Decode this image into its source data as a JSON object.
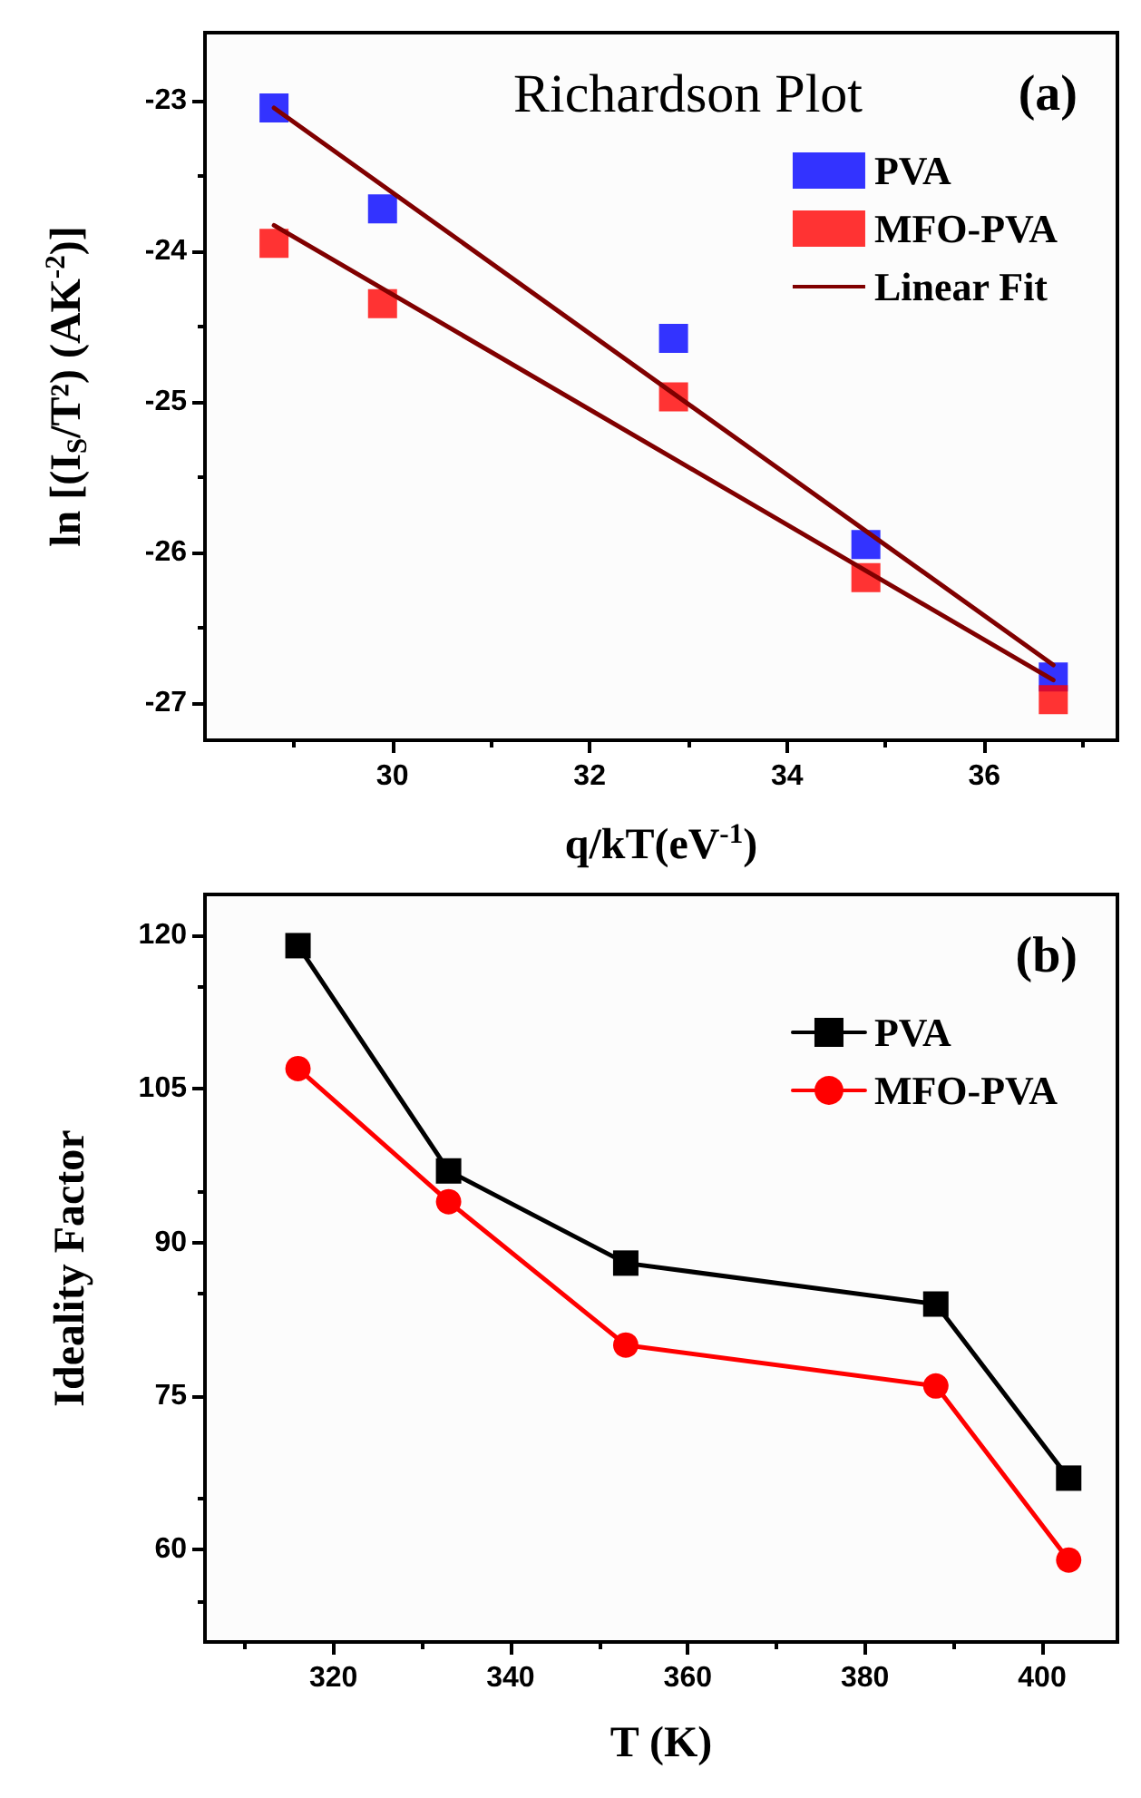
{
  "chart_data": [
    {
      "type": "scatter",
      "title": "Richardson Plot",
      "xlabel": "q/kT(eV$^{-1}$)",
      "ylabel": "ln [(I$_{S}$/T²) (AK$^{-2}$)]",
      "annotations": [
        "(a)"
      ],
      "xlim": [
        28.1,
        37.35
      ],
      "xticks": [
        30,
        32,
        34,
        36
      ],
      "ylim": [
        -27.25,
        -22.55
      ],
      "yticks": [
        -27,
        -26,
        -25,
        -24,
        -23
      ],
      "grid": false,
      "legend": "top right",
      "marker": "square",
      "series": [
        {
          "name": "PVA",
          "color": "#0000ff",
          "x": [
            28.8,
            29.9,
            32.85,
            34.8,
            36.7
          ],
          "values": [
            -23.05,
            -23.72,
            -24.58,
            -25.95,
            -26.83
          ]
        },
        {
          "name": "MFO-PVA",
          "color": "#ff0000",
          "x": [
            28.8,
            29.9,
            32.85,
            34.8,
            36.7
          ],
          "values": [
            -23.95,
            -24.35,
            -24.97,
            -26.17,
            -26.98
          ]
        },
        {
          "name": "Linear Fit",
          "type": "line",
          "marker": "none",
          "color": "#800000",
          "x": [
            28.8,
            36.7
          ],
          "values": [
            -23.05,
            -26.75
          ]
        },
        {
          "type": "line",
          "marker": "none",
          "color": "#800000",
          "x": [
            28.8,
            36.7
          ],
          "values": [
            -23.83,
            -26.85
          ]
        }
      ]
    },
    {
      "type": "line",
      "xlabel": "T (K)",
      "ylabel": "Ideality Factor",
      "annotations": [
        "(b)"
      ],
      "xlim": [
        305.5,
        408.5
      ],
      "xticks": [
        320,
        340,
        360,
        380,
        400
      ],
      "ylim": [
        51,
        124
      ],
      "yticks": [
        60,
        75,
        90,
        105,
        120
      ],
      "grid": false,
      "legend": "top right",
      "line_style": "solid",
      "series": [
        {
          "name": "PVA",
          "color": "#000000",
          "marker": "square",
          "x": [
            316,
            333,
            353,
            388,
            403
          ],
          "values": [
            119,
            97,
            88,
            84,
            67
          ]
        },
        {
          "name": "MFO-PVA",
          "color": "#ff0000",
          "marker": "circle",
          "x": [
            316,
            333,
            353,
            388,
            403
          ],
          "values": [
            107,
            94,
            80,
            76,
            59
          ]
        }
      ]
    }
  ]
}
